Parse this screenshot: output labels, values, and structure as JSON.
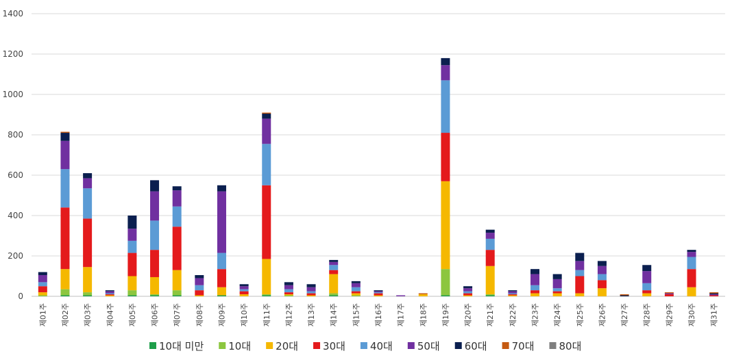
{
  "chart_data": {
    "type": "bar",
    "stacked": true,
    "ylim": [
      0,
      1400
    ],
    "yticks": [
      "0",
      "200",
      "400",
      "600",
      "800",
      "1000",
      "1200",
      "1400"
    ],
    "grid": true,
    "legend_position": "bottom",
    "categories": [
      "제01주",
      "제02주",
      "제03주",
      "제04주",
      "제05주",
      "제06주",
      "제07주",
      "제08주",
      "제09주",
      "제10주",
      "제11주",
      "제12주",
      "제13주",
      "제14주",
      "제15주",
      "제16주",
      "제17주",
      "제18주",
      "제19주",
      "제20주",
      "제21주",
      "제22주",
      "제23주",
      "제24주",
      "제25주",
      "제26주",
      "제27주",
      "제28주",
      "제29주",
      "제30주",
      "제31주"
    ],
    "series": [
      {
        "name": "10대 미만",
        "color": "#1e9e4a",
        "values": [
          0,
          5,
          5,
          0,
          5,
          5,
          5,
          0,
          5,
          0,
          5,
          0,
          0,
          5,
          0,
          0,
          0,
          0,
          5,
          0,
          5,
          0,
          0,
          0,
          0,
          0,
          0,
          0,
          0,
          0,
          0
        ]
      },
      {
        "name": "10대",
        "color": "#8cc63f",
        "values": [
          5,
          30,
          15,
          0,
          25,
          5,
          25,
          0,
          0,
          0,
          5,
          5,
          0,
          10,
          5,
          0,
          0,
          0,
          130,
          0,
          5,
          0,
          0,
          0,
          0,
          0,
          0,
          0,
          0,
          0,
          0
        ]
      },
      {
        "name": "20대",
        "color": "#f5b800",
        "values": [
          15,
          100,
          125,
          5,
          70,
          85,
          100,
          5,
          40,
          10,
          175,
          5,
          5,
          95,
          10,
          5,
          0,
          10,
          435,
          5,
          140,
          5,
          15,
          15,
          15,
          40,
          0,
          15,
          0,
          45,
          0
        ]
      },
      {
        "name": "30대",
        "color": "#e41a1c",
        "values": [
          30,
          305,
          240,
          5,
          115,
          135,
          215,
          25,
          90,
          15,
          365,
          10,
          10,
          20,
          10,
          10,
          0,
          0,
          240,
          10,
          80,
          5,
          15,
          10,
          85,
          40,
          0,
          15,
          10,
          90,
          5
        ]
      },
      {
        "name": "40대",
        "color": "#5b9bd5",
        "values": [
          20,
          190,
          150,
          5,
          60,
          145,
          100,
          25,
          80,
          10,
          205,
          15,
          10,
          25,
          20,
          5,
          0,
          0,
          260,
          10,
          55,
          5,
          25,
          15,
          30,
          30,
          0,
          35,
          0,
          60,
          0
        ]
      },
      {
        "name": "50대",
        "color": "#7030a0",
        "values": [
          35,
          140,
          50,
          10,
          60,
          145,
          80,
          35,
          305,
          15,
          125,
          20,
          20,
          15,
          20,
          5,
          5,
          0,
          75,
          15,
          30,
          10,
          55,
          45,
          45,
          40,
          0,
          60,
          5,
          25,
          5
        ]
      },
      {
        "name": "60대",
        "color": "#0b1f4f",
        "values": [
          15,
          40,
          25,
          5,
          65,
          55,
          20,
          15,
          30,
          10,
          25,
          15,
          15,
          10,
          10,
          5,
          0,
          0,
          35,
          10,
          15,
          5,
          25,
          25,
          40,
          25,
          5,
          30,
          0,
          10,
          5
        ]
      },
      {
        "name": "70대",
        "color": "#c55a11",
        "values": [
          0,
          5,
          0,
          0,
          0,
          0,
          0,
          0,
          0,
          0,
          5,
          0,
          0,
          0,
          0,
          0,
          0,
          5,
          0,
          0,
          0,
          0,
          0,
          0,
          0,
          0,
          5,
          0,
          5,
          0,
          5
        ]
      },
      {
        "name": "80대",
        "color": "#7f7f7f",
        "values": [
          0,
          0,
          0,
          0,
          0,
          0,
          0,
          0,
          0,
          0,
          0,
          0,
          0,
          0,
          0,
          0,
          0,
          0,
          0,
          0,
          0,
          0,
          0,
          0,
          0,
          0,
          0,
          0,
          0,
          0,
          0
        ]
      }
    ]
  }
}
